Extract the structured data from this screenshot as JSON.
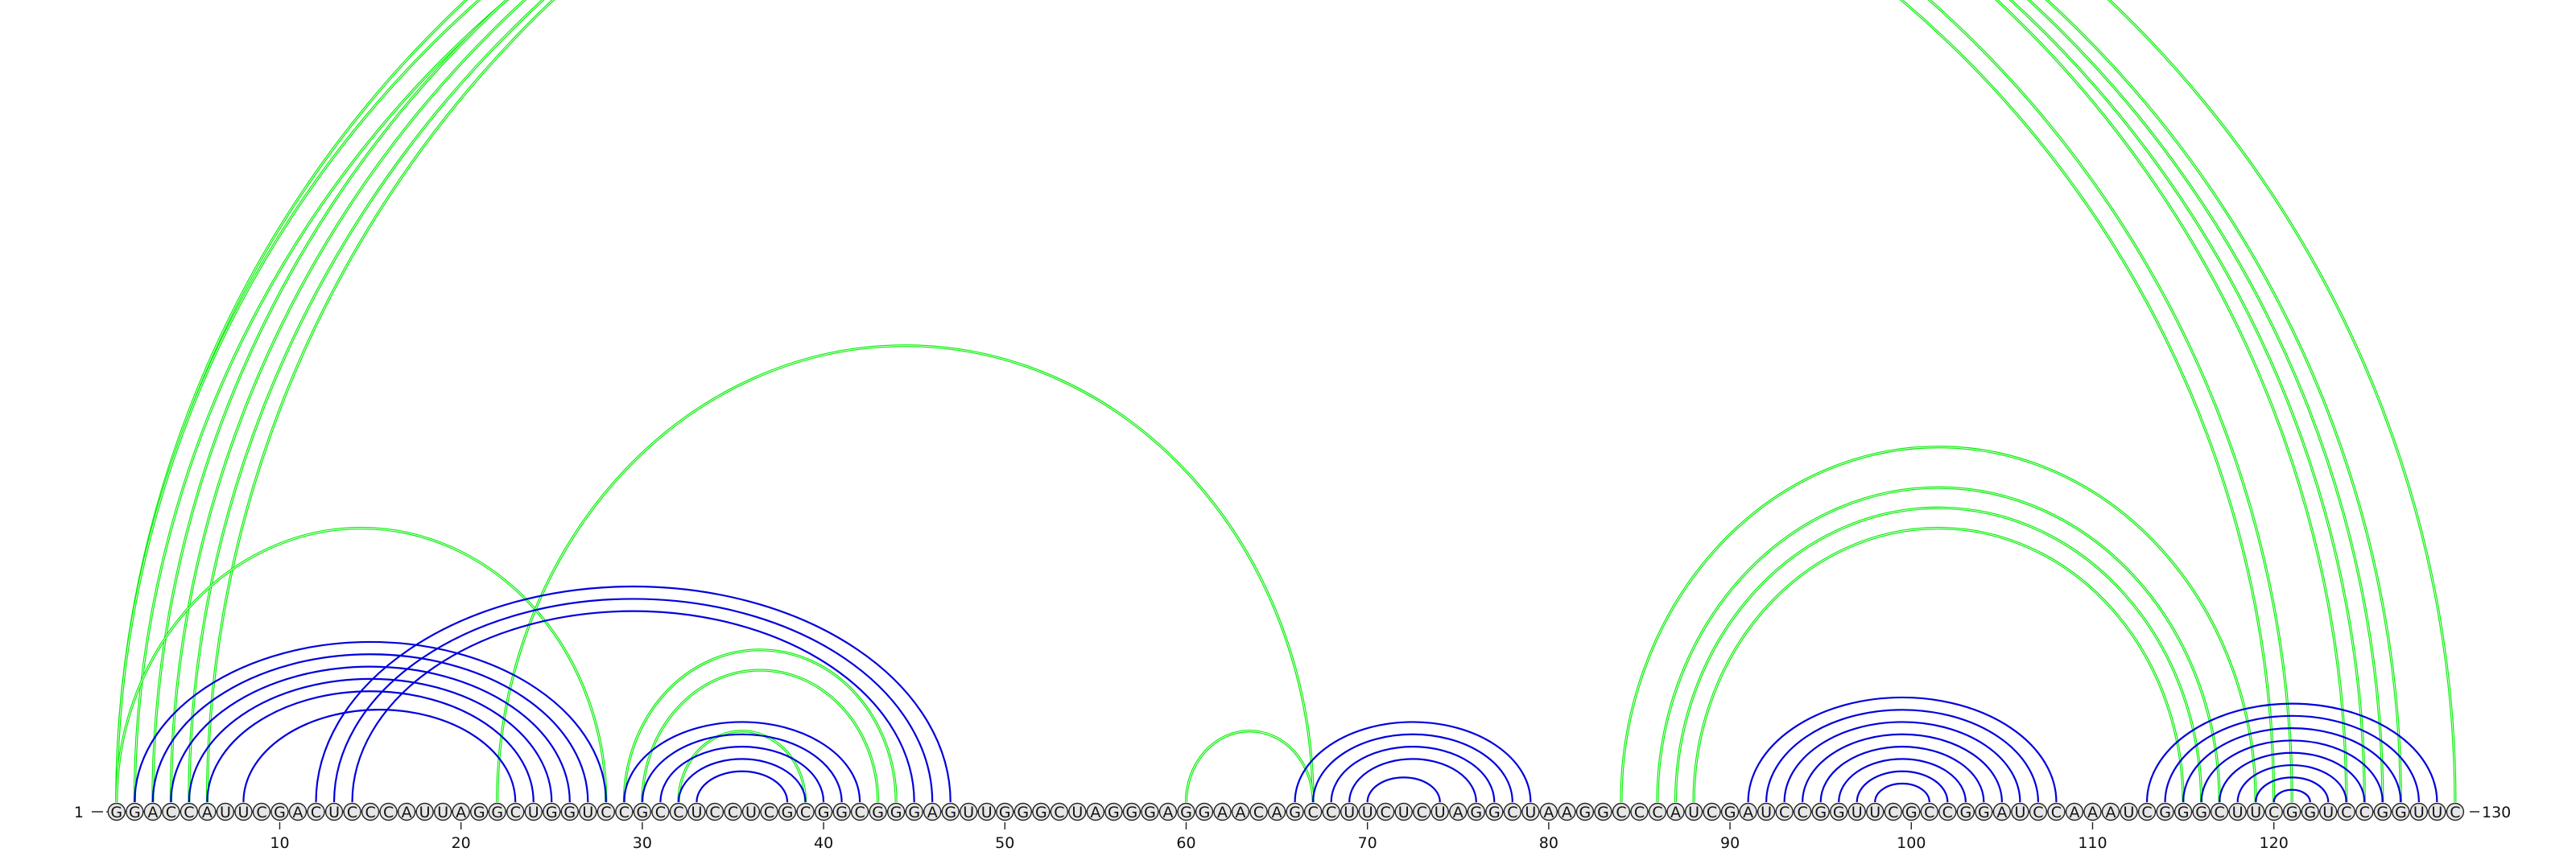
{
  "sequence": {
    "residues": "GGACCAUUCGACUCCCAUUAGGCUGGUCCGCCUCCUCGCGGCGGGAGUUGGGCUAGGGAGGAACAGCCUUCUCUAGGCUAAGGCCCAUCGAUCCGGUUCGCCGGAUCCAAAUCGGGCUUCGGUCCGGUUC",
    "length": 130,
    "start_label": "1",
    "end_label": "130",
    "tick_labels": [
      "10",
      "20",
      "30",
      "40",
      "50",
      "60",
      "70",
      "80",
      "90",
      "100",
      "110",
      "120"
    ]
  },
  "colors": {
    "upper_arcs": "#00ee00",
    "lower_arcs": "#0000dd",
    "circle_fill": "#e6e6e6",
    "circle_stroke": "#222222"
  },
  "upper_arcs": [
    {
      "i": 1,
      "j": 124
    },
    {
      "i": 1,
      "j": 121
    },
    {
      "i": 2,
      "j": 120
    },
    {
      "i": 3,
      "j": 125
    },
    {
      "i": 4,
      "j": 126
    },
    {
      "i": 5,
      "j": 127
    },
    {
      "i": 6,
      "j": 130
    },
    {
      "i": 1,
      "j": 28
    },
    {
      "i": 22,
      "j": 67
    },
    {
      "i": 29,
      "j": 44
    },
    {
      "i": 30,
      "j": 43
    },
    {
      "i": 32,
      "j": 39
    },
    {
      "i": 60,
      "j": 67
    },
    {
      "i": 84,
      "j": 119
    },
    {
      "i": 86,
      "j": 117
    },
    {
      "i": 87,
      "j": 116
    },
    {
      "i": 88,
      "j": 115
    }
  ],
  "lower_arcs": [
    {
      "i": 2,
      "j": 28
    },
    {
      "i": 3,
      "j": 27
    },
    {
      "i": 4,
      "j": 26
    },
    {
      "i": 5,
      "j": 25
    },
    {
      "i": 6,
      "j": 24
    },
    {
      "i": 8,
      "j": 23
    },
    {
      "i": 12,
      "j": 47
    },
    {
      "i": 13,
      "j": 46
    },
    {
      "i": 14,
      "j": 45
    },
    {
      "i": 29,
      "j": 42
    },
    {
      "i": 30,
      "j": 41
    },
    {
      "i": 31,
      "j": 40
    },
    {
      "i": 32,
      "j": 39
    },
    {
      "i": 33,
      "j": 38
    },
    {
      "i": 66,
      "j": 79
    },
    {
      "i": 67,
      "j": 78
    },
    {
      "i": 68,
      "j": 77
    },
    {
      "i": 69,
      "j": 76
    },
    {
      "i": 70,
      "j": 74
    },
    {
      "i": 91,
      "j": 108
    },
    {
      "i": 92,
      "j": 107
    },
    {
      "i": 93,
      "j": 106
    },
    {
      "i": 94,
      "j": 105
    },
    {
      "i": 95,
      "j": 104
    },
    {
      "i": 96,
      "j": 103
    },
    {
      "i": 97,
      "j": 102
    },
    {
      "i": 98,
      "j": 101
    },
    {
      "i": 113,
      "j": 129
    },
    {
      "i": 114,
      "j": 128
    },
    {
      "i": 115,
      "j": 127
    },
    {
      "i": 116,
      "j": 126
    },
    {
      "i": 117,
      "j": 125
    },
    {
      "i": 118,
      "j": 124
    },
    {
      "i": 119,
      "j": 123
    },
    {
      "i": 120,
      "j": 122
    }
  ]
}
